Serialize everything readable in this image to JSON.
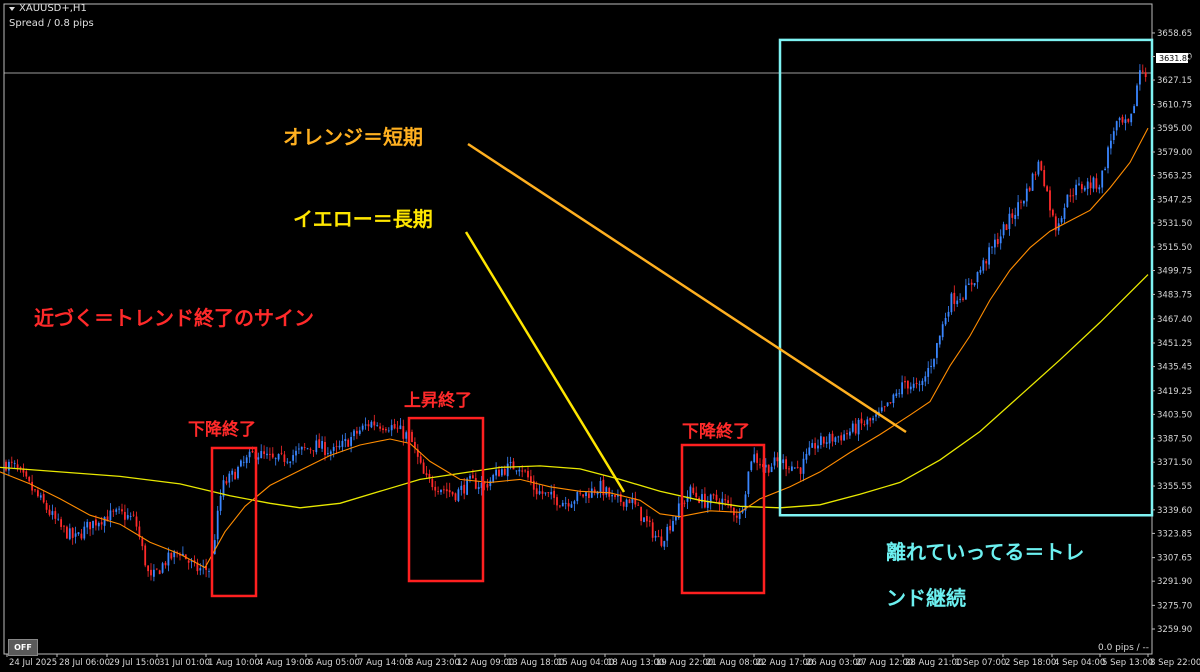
{
  "header": {
    "symbol_label": "XAUUSD+,H1",
    "spread_label": "Spread / 0.8 pips"
  },
  "current_price_label": "3631.85",
  "footer": {
    "off_label": "OFF",
    "pips_label": "0.0 pips / --"
  },
  "annotations": {
    "orange_short": "オレンジ＝短期",
    "yellow_long": "イエロー＝長期",
    "approach": "近づく＝トレンド終了のサイン",
    "box1_label": "下降終了",
    "box2_label": "上昇終了",
    "box3_label": "下降終了",
    "diverge_line1": "離れていってる＝トレ",
    "diverge_line2": "ンド継続"
  },
  "colors": {
    "background": "#000000",
    "bull_candle": "#3a86ff",
    "bear_candle": "#ff2a2a",
    "ma_short": "#ff8c00",
    "ma_long": "#e8e800",
    "red_box": "#ff2020",
    "cyan_box": "#7ff3f3",
    "orange_text": "#ffb020",
    "yellow_text": "#ffe600",
    "red_text": "#ff2a2a",
    "cyan_text": "#6cf0f0"
  },
  "chart_data": {
    "type": "candlestick",
    "symbol": "XAUUSD+",
    "timeframe": "H1",
    "ylim": [
      3259.9,
      3672.0
    ],
    "y_ticks": [
      3658.65,
      3642.9,
      3627.15,
      3610.75,
      3595.0,
      3579.0,
      3563.25,
      3547.25,
      3531.5,
      3515.5,
      3499.75,
      3483.75,
      3467.4,
      3451.25,
      3435.45,
      3419.25,
      3403.5,
      3387.5,
      3371.5,
      3355.55,
      3339.6,
      3323.85,
      3307.65,
      3291.9,
      3275.7,
      3259.9
    ],
    "x_labels": [
      "24 Jul 2025",
      "28 Jul 06:00",
      "29 Jul 15:00",
      "31 Jul 01:00",
      "1 Aug 10:00",
      "4 Aug 19:00",
      "6 Aug 05:00",
      "7 Aug 14:00",
      "8 Aug 23:00",
      "12 Aug 09:00",
      "13 Aug 18:00",
      "15 Aug 04:00",
      "18 Aug 13:00",
      "19 Aug 22:00",
      "21 Aug 08:00",
      "22 Aug 17:00",
      "26 Aug 03:00",
      "27 Aug 12:00",
      "28 Aug 21:00",
      "1 Sep 07:00",
      "2 Sep 18:00",
      "4 Sep 04:00",
      "5 Sep 13:00",
      "8 Sep 22:00"
    ],
    "price_path": [
      [
        0,
        3372
      ],
      [
        15,
        3368
      ],
      [
        30,
        3355
      ],
      [
        45,
        3342
      ],
      [
        60,
        3328
      ],
      [
        75,
        3320
      ],
      [
        90,
        3330
      ],
      [
        105,
        3335
      ],
      [
        120,
        3337
      ],
      [
        135,
        3333
      ],
      [
        150,
        3292
      ],
      [
        165,
        3305
      ],
      [
        180,
        3312
      ],
      [
        195,
        3300
      ],
      [
        210,
        3300
      ],
      [
        222,
        3355
      ],
      [
        240,
        3368
      ],
      [
        255,
        3378
      ],
      [
        275,
        3372
      ],
      [
        295,
        3377
      ],
      [
        315,
        3383
      ],
      [
        335,
        3378
      ],
      [
        355,
        3390
      ],
      [
        370,
        3398
      ],
      [
        390,
        3396
      ],
      [
        410,
        3388
      ],
      [
        425,
        3360
      ],
      [
        440,
        3355
      ],
      [
        455,
        3350
      ],
      [
        470,
        3358
      ],
      [
        485,
        3356
      ],
      [
        500,
        3366
      ],
      [
        520,
        3370
      ],
      [
        535,
        3353
      ],
      [
        550,
        3348
      ],
      [
        565,
        3345
      ],
      [
        585,
        3350
      ],
      [
        600,
        3355
      ],
      [
        615,
        3345
      ],
      [
        630,
        3347
      ],
      [
        645,
        3332
      ],
      [
        660,
        3318
      ],
      [
        675,
        3336
      ],
      [
        690,
        3352
      ],
      [
        705,
        3345
      ],
      [
        720,
        3347
      ],
      [
        740,
        3335
      ],
      [
        752,
        3377
      ],
      [
        765,
        3368
      ],
      [
        780,
        3372
      ],
      [
        800,
        3367
      ],
      [
        815,
        3383
      ],
      [
        830,
        3387
      ],
      [
        845,
        3390
      ],
      [
        860,
        3396
      ],
      [
        875,
        3400
      ],
      [
        890,
        3410
      ],
      [
        905,
        3425
      ],
      [
        920,
        3420
      ],
      [
        935,
        3445
      ],
      [
        950,
        3480
      ],
      [
        965,
        3485
      ],
      [
        980,
        3500
      ],
      [
        995,
        3518
      ],
      [
        1010,
        3534
      ],
      [
        1025,
        3550
      ],
      [
        1040,
        3573
      ],
      [
        1055,
        3528
      ],
      [
        1070,
        3552
      ],
      [
        1085,
        3557
      ],
      [
        1100,
        3558
      ],
      [
        1115,
        3598
      ],
      [
        1130,
        3596
      ],
      [
        1140,
        3635
      ],
      [
        1148,
        3632
      ]
    ],
    "ma_short_path": [
      [
        0,
        3365
      ],
      [
        30,
        3357
      ],
      [
        60,
        3347
      ],
      [
        90,
        3336
      ],
      [
        120,
        3330
      ],
      [
        150,
        3318
      ],
      [
        180,
        3310
      ],
      [
        205,
        3301
      ],
      [
        225,
        3325
      ],
      [
        245,
        3342
      ],
      [
        270,
        3356
      ],
      [
        300,
        3366
      ],
      [
        330,
        3376
      ],
      [
        360,
        3383
      ],
      [
        390,
        3387
      ],
      [
        410,
        3384
      ],
      [
        430,
        3372
      ],
      [
        460,
        3360
      ],
      [
        490,
        3358
      ],
      [
        520,
        3360
      ],
      [
        550,
        3355
      ],
      [
        580,
        3352
      ],
      [
        610,
        3351
      ],
      [
        640,
        3346
      ],
      [
        660,
        3337
      ],
      [
        680,
        3335
      ],
      [
        710,
        3339
      ],
      [
        740,
        3338
      ],
      [
        760,
        3347
      ],
      [
        790,
        3355
      ],
      [
        820,
        3365
      ],
      [
        850,
        3378
      ],
      [
        880,
        3390
      ],
      [
        910,
        3403
      ],
      [
        930,
        3412
      ],
      [
        950,
        3436
      ],
      [
        970,
        3456
      ],
      [
        990,
        3480
      ],
      [
        1010,
        3500
      ],
      [
        1030,
        3515
      ],
      [
        1050,
        3526
      ],
      [
        1070,
        3533
      ],
      [
        1090,
        3540
      ],
      [
        1110,
        3555
      ],
      [
        1130,
        3572
      ],
      [
        1148,
        3595
      ]
    ],
    "ma_long_path": [
      [
        0,
        3368
      ],
      [
        60,
        3365
      ],
      [
        120,
        3362
      ],
      [
        180,
        3357
      ],
      [
        230,
        3349
      ],
      [
        270,
        3344
      ],
      [
        300,
        3341
      ],
      [
        340,
        3344
      ],
      [
        380,
        3352
      ],
      [
        420,
        3360
      ],
      [
        460,
        3364
      ],
      [
        500,
        3368
      ],
      [
        540,
        3369
      ],
      [
        580,
        3367
      ],
      [
        620,
        3360
      ],
      [
        660,
        3352
      ],
      [
        700,
        3346
      ],
      [
        740,
        3342
      ],
      [
        780,
        3341
      ],
      [
        820,
        3343
      ],
      [
        860,
        3350
      ],
      [
        900,
        3358
      ],
      [
        940,
        3373
      ],
      [
        980,
        3392
      ],
      [
        1020,
        3416
      ],
      [
        1060,
        3440
      ],
      [
        1100,
        3465
      ],
      [
        1148,
        3497
      ]
    ],
    "boxes": [
      {
        "label": "下降終了",
        "x0": 212,
        "x1": 256,
        "y_top": 3381,
        "y_bot": 3282
      },
      {
        "label": "上昇終了",
        "x0": 409,
        "x1": 483,
        "y_top": 3401,
        "y_bot": 3292
      },
      {
        "label": "下降終了",
        "x0": 682,
        "x1": 764,
        "y_top": 3383,
        "y_bot": 3284
      },
      {
        "label": "離れていってる＝トレンド継続",
        "x0": 780,
        "x1": 1152,
        "y_top": 3654,
        "y_bot": 3336
      }
    ]
  }
}
